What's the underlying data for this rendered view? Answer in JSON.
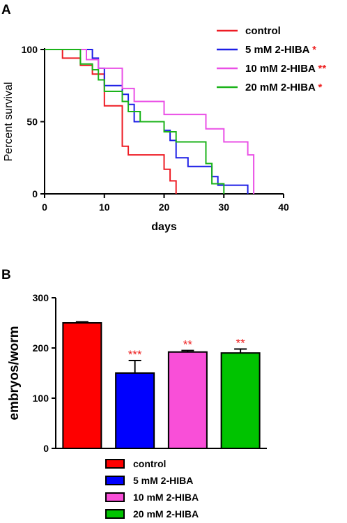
{
  "panels": {
    "a_label": "A",
    "b_label": "B"
  },
  "chart_data": [
    {
      "type": "line",
      "subtype": "kaplan-meier-step",
      "xlabel": "days",
      "ylabel": "Percent survival",
      "xlim": [
        0,
        40
      ],
      "ylim": [
        0,
        100
      ],
      "xticks": [
        "0",
        "10",
        "20",
        "30",
        "40"
      ],
      "yticks": [
        "0",
        "50",
        "100"
      ],
      "grid": false,
      "legend_position": "top-right",
      "series": [
        {
          "name": "control",
          "stars": "",
          "color": "#ee1c24",
          "points": [
            [
              0,
              100
            ],
            [
              3,
              100
            ],
            [
              3,
              94
            ],
            [
              6,
              94
            ],
            [
              6,
              89
            ],
            [
              8,
              89
            ],
            [
              8,
              83
            ],
            [
              10,
              83
            ],
            [
              10,
              61
            ],
            [
              13,
              61
            ],
            [
              13,
              33
            ],
            [
              14,
              33
            ],
            [
              14,
              27
            ],
            [
              20,
              27
            ],
            [
              20,
              17
            ],
            [
              21,
              17
            ],
            [
              21,
              9
            ],
            [
              22,
              9
            ],
            [
              22,
              0
            ]
          ]
        },
        {
          "name": "5 mM 2-HIBA",
          "stars": "*",
          "color": "#1d1ee6",
          "points": [
            [
              0,
              100
            ],
            [
              8,
              100
            ],
            [
              8,
              94
            ],
            [
              9,
              94
            ],
            [
              9,
              87
            ],
            [
              10,
              87
            ],
            [
              10,
              75
            ],
            [
              13,
              75
            ],
            [
              13,
              69
            ],
            [
              14,
              69
            ],
            [
              14,
              62
            ],
            [
              15,
              62
            ],
            [
              15,
              50
            ],
            [
              20,
              50
            ],
            [
              20,
              44
            ],
            [
              21,
              44
            ],
            [
              21,
              37
            ],
            [
              22,
              37
            ],
            [
              22,
              25
            ],
            [
              24,
              25
            ],
            [
              24,
              19
            ],
            [
              28,
              19
            ],
            [
              28,
              12
            ],
            [
              29,
              12
            ],
            [
              29,
              6
            ],
            [
              34,
              6
            ],
            [
              34,
              0
            ]
          ]
        },
        {
          "name": "10 mM 2-HIBA",
          "stars": "**",
          "color": "#ea50e6",
          "points": [
            [
              0,
              100
            ],
            [
              7,
              100
            ],
            [
              7,
              93
            ],
            [
              9,
              93
            ],
            [
              9,
              87
            ],
            [
              13,
              87
            ],
            [
              13,
              73
            ],
            [
              15,
              73
            ],
            [
              15,
              64
            ],
            [
              20,
              64
            ],
            [
              20,
              55
            ],
            [
              27,
              55
            ],
            [
              27,
              45
            ],
            [
              30,
              45
            ],
            [
              30,
              36
            ],
            [
              34,
              36
            ],
            [
              34,
              27
            ],
            [
              35,
              27
            ],
            [
              35,
              0
            ]
          ]
        },
        {
          "name": "20 mM 2-HIBA",
          "stars": "*",
          "color": "#1bb31a",
          "points": [
            [
              0,
              100
            ],
            [
              6,
              100
            ],
            [
              6,
              90
            ],
            [
              8,
              90
            ],
            [
              8,
              86
            ],
            [
              9,
              86
            ],
            [
              9,
              79
            ],
            [
              10,
              79
            ],
            [
              10,
              71
            ],
            [
              11,
              71
            ],
            [
              11,
              71
            ],
            [
              13,
              71
            ],
            [
              13,
              64
            ],
            [
              14,
              64
            ],
            [
              14,
              57
            ],
            [
              16,
              57
            ],
            [
              16,
              50
            ],
            [
              20,
              50
            ],
            [
              20,
              43
            ],
            [
              22,
              43
            ],
            [
              22,
              36
            ],
            [
              27,
              36
            ],
            [
              27,
              21
            ],
            [
              28,
              21
            ],
            [
              28,
              7
            ],
            [
              30,
              7
            ],
            [
              30,
              0
            ]
          ]
        }
      ]
    },
    {
      "type": "bar",
      "ylabel": "embryos/worm",
      "ylim": [
        0,
        300
      ],
      "yticks": [
        "0",
        "100",
        "200",
        "300"
      ],
      "grid": false,
      "legend_position": "bottom",
      "categories": [
        "control",
        "5 mM 2-HIBA",
        "10 mM 2-HIBA",
        "20 mM 2-HIBA"
      ],
      "values": [
        250,
        150,
        192,
        190
      ],
      "errors": [
        2,
        25,
        3,
        8
      ],
      "significance": [
        "",
        "***",
        "**",
        "**"
      ],
      "colors": [
        "#fe0000",
        "#0000fe",
        "#f94fd8",
        "#00c300"
      ],
      "star_color": "#ee2222"
    }
  ]
}
